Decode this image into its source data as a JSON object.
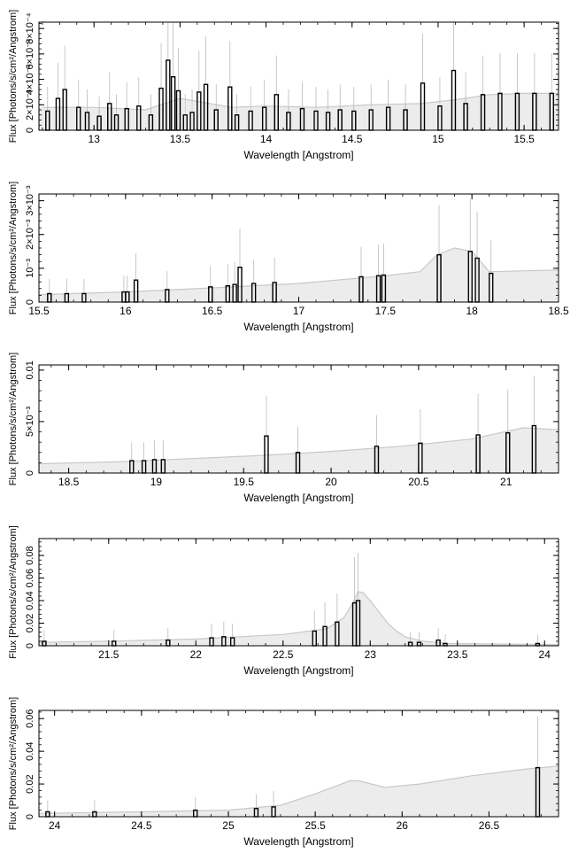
{
  "chart_data": [
    {
      "type": "line",
      "xlabel": "Wavelength [Angstrom]",
      "ylabel": "Flux [Photons/s/cm²/Angstrom]",
      "xlim": [
        12.68,
        15.7
      ],
      "ylim": [
        0,
        0.00085
      ],
      "xticks": [
        13,
        13.5,
        14,
        14.5,
        15,
        15.5
      ],
      "xtick_labels": [
        "13",
        "13.5",
        "14",
        "14.5",
        "15",
        "15.5"
      ],
      "yticks": [
        0,
        0.0002,
        0.0004,
        0.0006,
        0.0008
      ],
      "ytick_labels": [
        "0",
        "2×10⁻⁴",
        "4×10⁻⁴",
        "6×10⁻⁴",
        "8×10⁻⁴"
      ],
      "grid": false,
      "series": [
        {
          "role": "model",
          "color": "#d8d8d8",
          "x": [
            12.7,
            13.0,
            13.3,
            13.5,
            13.8,
            14.0,
            14.3,
            14.6,
            14.9,
            15.1,
            15.3,
            15.5,
            15.7
          ],
          "y": [
            0.00018,
            0.00018,
            0.00016,
            0.00025,
            0.00018,
            0.00019,
            0.00018,
            0.0002,
            0.00021,
            0.00024,
            0.00028,
            0.00029,
            0.00029
          ]
        },
        {
          "role": "data",
          "color": "#000000",
          "x": [
            12.72,
            12.78,
            12.82,
            12.9,
            12.95,
            13.02,
            13.08,
            13.12,
            13.18,
            13.25,
            13.32,
            13.38,
            13.42,
            13.45,
            13.48,
            13.52,
            13.56,
            13.6,
            13.64,
            13.7,
            13.78,
            13.82,
            13.9,
            13.98,
            14.05,
            14.12,
            14.2,
            14.28,
            14.35,
            14.42,
            14.5,
            14.6,
            14.7,
            14.8,
            14.9,
            15.0,
            15.08,
            15.15,
            15.25,
            15.35,
            15.45,
            15.55,
            15.65
          ],
          "y": [
            0.00015,
            0.00025,
            0.00032,
            0.00018,
            0.00014,
            0.00011,
            0.00021,
            0.00012,
            0.00017,
            0.00019,
            0.00012,
            0.00033,
            0.00055,
            0.00042,
            0.00031,
            0.00012,
            0.00014,
            0.0003,
            0.00036,
            0.00016,
            0.00034,
            0.00012,
            0.00015,
            0.00018,
            0.00028,
            0.00014,
            0.00017,
            0.00015,
            0.00014,
            0.00016,
            0.00015,
            0.00016,
            0.00018,
            0.00016,
            0.00037,
            0.00019,
            0.00047,
            0.00021,
            0.00028,
            0.00029,
            0.00029,
            0.00029,
            0.00029
          ]
        }
      ]
    },
    {
      "type": "line",
      "xlabel": "Wavelength [Angstrom]",
      "ylabel": "Flux [Photons/s/cm²/Angstrom]",
      "xlim": [
        15.5,
        18.5
      ],
      "ylim": [
        0,
        0.0032
      ],
      "xticks": [
        15.5,
        16,
        16.5,
        17,
        17.5,
        18,
        18.5
      ],
      "xtick_labels": [
        "15.5",
        "16",
        "16.5",
        "17",
        "17.5",
        "18",
        "18.5"
      ],
      "yticks": [
        0,
        0.001,
        0.002,
        0.003
      ],
      "ytick_labels": [
        "0",
        "10⁻³",
        "2×10⁻³",
        "3×10⁻³"
      ],
      "grid": false,
      "series": [
        {
          "role": "model",
          "color": "#d8d8d8",
          "x": [
            15.5,
            16.0,
            16.5,
            17.0,
            17.5,
            17.7,
            17.8,
            17.9,
            18.0,
            18.1,
            18.5
          ],
          "y": [
            0.00022,
            0.0003,
            0.00042,
            0.00055,
            0.00078,
            0.0009,
            0.0014,
            0.0016,
            0.0015,
            0.0009,
            0.00095
          ]
        },
        {
          "role": "data",
          "color": "#000000",
          "x": [
            15.55,
            15.65,
            15.75,
            15.98,
            16.0,
            16.05,
            16.23,
            16.48,
            16.58,
            16.62,
            16.65,
            16.73,
            16.85,
            17.35,
            17.45,
            17.48,
            17.8,
            17.98,
            18.02,
            18.1
          ],
          "y": [
            0.00025,
            0.00025,
            0.00025,
            0.0003,
            0.0003,
            0.00065,
            0.00037,
            0.00045,
            0.00048,
            0.00052,
            0.00103,
            0.00055,
            0.00058,
            0.00075,
            0.00078,
            0.0008,
            0.0014,
            0.0015,
            0.0013,
            0.00085
          ]
        }
      ]
    },
    {
      "type": "line",
      "xlabel": "Wavelength [Angstrom]",
      "ylabel": "Flux [Photons/s/cm²/Angstrom]",
      "xlim": [
        18.33,
        21.3
      ],
      "ylim": [
        0,
        0.0105
      ],
      "xticks": [
        18.5,
        19,
        19.5,
        20,
        20.5,
        21
      ],
      "xtick_labels": [
        "18.5",
        "19",
        "19.5",
        "20",
        "20.5",
        "21"
      ],
      "yticks": [
        0,
        0.005,
        0.01
      ],
      "ytick_labels": [
        "0",
        "5×10⁻³",
        "0.01"
      ],
      "grid": false,
      "series": [
        {
          "role": "model",
          "color": "#d8d8d8",
          "x": [
            18.33,
            18.8,
            19.2,
            19.6,
            20.0,
            20.4,
            20.8,
            21.1,
            21.3
          ],
          "y": [
            0.0009,
            0.0011,
            0.0014,
            0.0017,
            0.0021,
            0.0026,
            0.0033,
            0.0044,
            0.0042
          ]
        },
        {
          "role": "data",
          "color": "#000000",
          "x": [
            18.85,
            18.92,
            18.98,
            19.03,
            19.62,
            19.8,
            20.25,
            20.5,
            20.83,
            21.0,
            21.15
          ],
          "y": [
            0.0012,
            0.0012,
            0.0013,
            0.0013,
            0.0036,
            0.002,
            0.0026,
            0.0029,
            0.0037,
            0.0039,
            0.0046
          ]
        }
      ]
    },
    {
      "type": "line",
      "xlabel": "Wavelength [Angstrom]",
      "ylabel": "Flux [Photons/s/cm²/Angstrom]",
      "xlim": [
        21.1,
        24.08
      ],
      "ylim": [
        0,
        0.095
      ],
      "xticks": [
        21.5,
        22,
        22.5,
        23,
        23.5,
        24
      ],
      "xtick_labels": [
        "21.5",
        "22",
        "22.5",
        "23",
        "23.5",
        "24"
      ],
      "yticks": [
        0,
        0.02,
        0.04,
        0.06,
        0.08
      ],
      "ytick_labels": [
        "0",
        "0.02",
        "0.04",
        "0.06",
        "0.08"
      ],
      "grid": false,
      "series": [
        {
          "role": "model",
          "color": "#d8d8d8",
          "x": [
            21.1,
            21.5,
            22.0,
            22.5,
            22.75,
            22.85,
            22.9,
            22.93,
            22.96,
            23.0,
            23.05,
            23.1,
            23.15,
            23.2,
            23.3,
            23.45,
            24.08
          ],
          "y": [
            0.003,
            0.004,
            0.006,
            0.01,
            0.015,
            0.025,
            0.038,
            0.048,
            0.047,
            0.04,
            0.03,
            0.02,
            0.013,
            0.008,
            0.004,
            0.002,
            0.001
          ]
        },
        {
          "role": "data",
          "color": "#000000",
          "x": [
            21.12,
            21.52,
            21.83,
            22.08,
            22.15,
            22.2,
            22.67,
            22.73,
            22.8,
            22.9,
            22.92,
            23.22,
            23.27,
            23.38,
            23.42,
            23.95
          ],
          "y": [
            0.004,
            0.004,
            0.005,
            0.007,
            0.008,
            0.007,
            0.013,
            0.017,
            0.021,
            0.038,
            0.04,
            0.003,
            0.003,
            0.005,
            0.002,
            0.002
          ]
        }
      ]
    },
    {
      "type": "line",
      "xlabel": "Wavelength [Angstrom]",
      "ylabel": "Flux [Photons/s/cm²/Angstrom]",
      "xlim": [
        23.91,
        26.9
      ],
      "ylim": [
        0,
        0.065
      ],
      "xticks": [
        24,
        24.5,
        25,
        25.5,
        26,
        26.5
      ],
      "xtick_labels": [
        "24",
        "24.5",
        "25",
        "25.5",
        "26",
        "26.5"
      ],
      "yticks": [
        0,
        0.02,
        0.04,
        0.06
      ],
      "ytick_labels": [
        "0",
        "0.02",
        "0.04",
        "0.06"
      ],
      "grid": false,
      "series": [
        {
          "role": "model",
          "color": "#d8d8d8",
          "x": [
            23.91,
            24.5,
            25.0,
            25.3,
            25.5,
            25.7,
            25.75,
            25.9,
            26.1,
            26.4,
            26.7,
            26.9
          ],
          "y": [
            0.002,
            0.003,
            0.004,
            0.007,
            0.014,
            0.022,
            0.022,
            0.018,
            0.02,
            0.025,
            0.029,
            0.031
          ]
        },
        {
          "role": "data",
          "color": "#000000",
          "x": [
            23.95,
            24.22,
            24.8,
            25.15,
            25.25,
            26.77
          ],
          "y": [
            0.003,
            0.003,
            0.004,
            0.005,
            0.006,
            0.03
          ]
        }
      ]
    }
  ]
}
